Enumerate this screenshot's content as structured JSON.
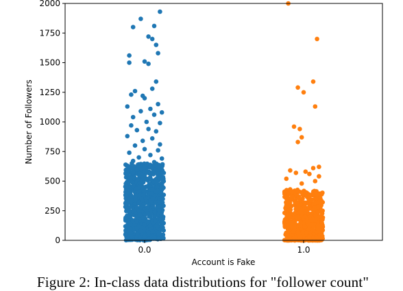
{
  "caption": "Figure 2: In-class data distributions for \"follower count\"",
  "chart_data": {
    "type": "scatter",
    "subtype": "strip",
    "title": "",
    "xlabel": "Account is Fake",
    "ylabel": "Number of Followers",
    "categories": [
      "0.0",
      "1.0"
    ],
    "ylim": [
      0,
      2000
    ],
    "yticks": [
      0,
      250,
      500,
      750,
      1000,
      1250,
      1500,
      1750,
      2000
    ],
    "grid": false,
    "series": [
      {
        "category": "0.0",
        "color": "#1f77b4",
        "points": [
          [
            -0.06,
            1800
          ],
          [
            0.08,
            1930
          ],
          [
            -0.02,
            1870
          ],
          [
            0.02,
            1720
          ],
          [
            0.04,
            1700
          ],
          [
            0.05,
            1810
          ],
          [
            -0.08,
            1560
          ],
          [
            0.06,
            1650
          ],
          [
            -0.08,
            1500
          ],
          [
            0.0,
            1510
          ],
          [
            0.02,
            1490
          ],
          [
            0.07,
            1580
          ],
          [
            0.06,
            1340
          ],
          [
            -0.05,
            1260
          ],
          [
            -0.07,
            1230
          ],
          [
            0.04,
            1280
          ],
          [
            -0.01,
            1220
          ],
          [
            0.0,
            1200
          ],
          [
            0.07,
            1150
          ],
          [
            -0.09,
            1130
          ],
          [
            0.03,
            1110
          ],
          [
            0.09,
            1080
          ],
          [
            -0.02,
            1090
          ],
          [
            0.05,
            1060
          ],
          [
            -0.06,
            1040
          ],
          [
            0.01,
            1000
          ],
          [
            0.08,
            990
          ],
          [
            -0.07,
            970
          ],
          [
            0.02,
            940
          ],
          [
            -0.04,
            930
          ],
          [
            0.06,
            920
          ],
          [
            -0.09,
            880
          ],
          [
            0.04,
            860
          ],
          [
            -0.01,
            840
          ],
          [
            0.08,
            810
          ],
          [
            -0.05,
            800
          ],
          [
            0.0,
            770
          ],
          [
            0.07,
            760
          ],
          [
            -0.08,
            740
          ],
          [
            0.03,
            720
          ],
          [
            -0.03,
            700
          ],
          [
            0.09,
            690
          ],
          [
            -0.06,
            670
          ],
          [
            0.05,
            660
          ],
          [
            0.01,
            640
          ],
          [
            -0.09,
            630
          ],
          [
            0.08,
            610
          ],
          [
            -0.02,
            600
          ]
        ],
        "dense_range": [
          0,
          650
        ]
      },
      {
        "category": "1.0",
        "color": "#ff7f0e",
        "points": [
          [
            -0.08,
            2000
          ],
          [
            0.07,
            1700
          ],
          [
            0.05,
            1340
          ],
          [
            -0.03,
            1290
          ],
          [
            0.06,
            1130
          ],
          [
            0.0,
            1250
          ],
          [
            -0.05,
            960
          ],
          [
            -0.02,
            940
          ],
          [
            -0.01,
            870
          ],
          [
            -0.03,
            830
          ],
          [
            0.08,
            620
          ],
          [
            0.05,
            610
          ],
          [
            -0.07,
            590
          ],
          [
            0.01,
            580
          ],
          [
            -0.04,
            570
          ],
          [
            0.03,
            560
          ],
          [
            0.08,
            540
          ],
          [
            -0.09,
            520
          ],
          [
            0.06,
            500
          ],
          [
            -0.01,
            480
          ]
        ],
        "dense_range": [
          0,
          430
        ]
      }
    ]
  }
}
